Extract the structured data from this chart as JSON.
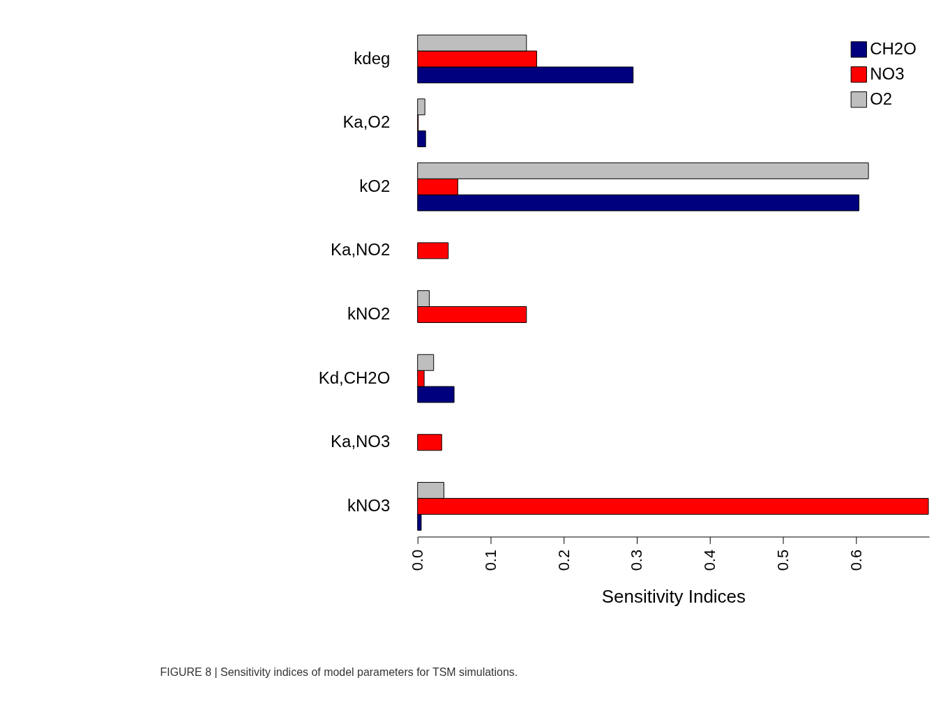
{
  "chart_data": {
    "type": "bar",
    "orientation": "horizontal",
    "categories": [
      "kdeg",
      "Ka,O2",
      "kO2",
      "Ka,NO2",
      "kNO2",
      "Kd,CH2O",
      "Ka,NO3",
      "kNO3"
    ],
    "series": [
      {
        "name": "CH2O",
        "color": "#00007f",
        "values": [
          0.295,
          0.011,
          0.604,
          null,
          null,
          0.05,
          null,
          0.005
        ]
      },
      {
        "name": "NO3",
        "color": "#ff0000",
        "values": [
          0.163,
          0.001,
          0.055,
          0.042,
          0.149,
          0.009,
          0.033,
          0.699
        ]
      },
      {
        "name": "O2",
        "color": "#bebebe",
        "values": [
          0.149,
          0.01,
          0.617,
          null,
          0.016,
          0.022,
          null,
          0.036
        ]
      }
    ],
    "xlim": [
      0,
      0.7
    ],
    "xticks": [
      {
        "value": 0,
        "label": "0.0"
      },
      0.1,
      0.2,
      0.3,
      0.4,
      0.5,
      0.6
    ],
    "xlabel": "Sensitivity Indices",
    "legend": "top right",
    "grid": false,
    "annotations": [
      "FIGURE 8 | Sensitivity indices of model parameters for TSM simulations."
    ]
  }
}
